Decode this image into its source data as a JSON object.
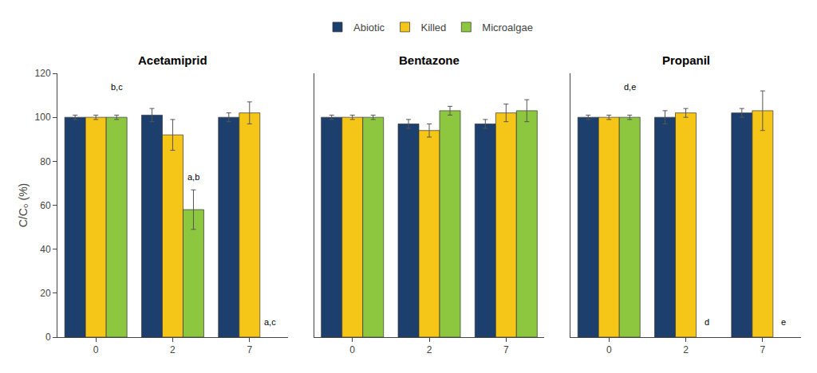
{
  "chart_data": [
    {
      "type": "bar",
      "title": "Acetamiprid",
      "categories": [
        "0",
        "2",
        "7"
      ],
      "series": [
        {
          "name": "Abiotic",
          "color": "#1c3f6e",
          "values": [
            100,
            101,
            100
          ],
          "errors": [
            1,
            3,
            2
          ]
        },
        {
          "name": "Killed",
          "color": "#f5c518",
          "values": [
            100,
            92,
            102
          ],
          "errors": [
            1,
            7,
            5
          ]
        },
        {
          "name": "Microalgae",
          "color": "#8dc63f",
          "values": [
            100,
            58,
            0
          ],
          "errors": [
            1,
            9,
            0
          ]
        }
      ],
      "ylabel": "C/C₀ (%)",
      "ylim": [
        0,
        120
      ],
      "yticks": [
        0,
        20,
        40,
        60,
        80,
        100,
        120
      ],
      "grid": false,
      "legend": "top",
      "annotations": [
        {
          "text": "b,c",
          "category": "0",
          "y": 111
        },
        {
          "text": "a,b",
          "category": "2",
          "y": 70
        },
        {
          "text": "a,c",
          "category": "7",
          "y": 4
        }
      ]
    },
    {
      "type": "bar",
      "title": "Bentazone",
      "categories": [
        "0",
        "2",
        "7"
      ],
      "series": [
        {
          "name": "Abiotic",
          "color": "#1c3f6e",
          "values": [
            100,
            97,
            97
          ],
          "errors": [
            1,
            2,
            2
          ]
        },
        {
          "name": "Killed",
          "color": "#f5c518",
          "values": [
            100,
            94,
            102
          ],
          "errors": [
            1,
            3,
            4
          ]
        },
        {
          "name": "Microalgae",
          "color": "#8dc63f",
          "values": [
            100,
            103,
            103
          ],
          "errors": [
            1,
            2,
            5
          ]
        }
      ],
      "ylim": [
        0,
        120
      ],
      "yticks": [
        0,
        20,
        40,
        60,
        80,
        100,
        120
      ],
      "grid": false,
      "tick_labels": "x",
      "annotations": []
    },
    {
      "type": "bar",
      "title": "Propanil",
      "categories": [
        "0",
        "2",
        "7"
      ],
      "series": [
        {
          "name": "Abiotic",
          "color": "#1c3f6e",
          "values": [
            100,
            100,
            102
          ],
          "errors": [
            1,
            3,
            2
          ]
        },
        {
          "name": "Killed",
          "color": "#f5c518",
          "values": [
            100,
            102,
            103
          ],
          "errors": [
            1,
            2,
            9
          ]
        },
        {
          "name": "Microalgae",
          "color": "#8dc63f",
          "values": [
            100,
            0,
            0
          ],
          "errors": [
            1,
            0,
            0
          ]
        }
      ],
      "ylim": [
        0,
        120
      ],
      "yticks": [
        0,
        20,
        40,
        60,
        80,
        100,
        120
      ],
      "grid": false,
      "tick_labels": "x",
      "annotations": [
        {
          "text": "d,e",
          "category": "0",
          "y": 111
        },
        {
          "text": "d",
          "category": "2",
          "y": 4
        },
        {
          "text": "e",
          "category": "7",
          "y": 4
        }
      ]
    }
  ]
}
